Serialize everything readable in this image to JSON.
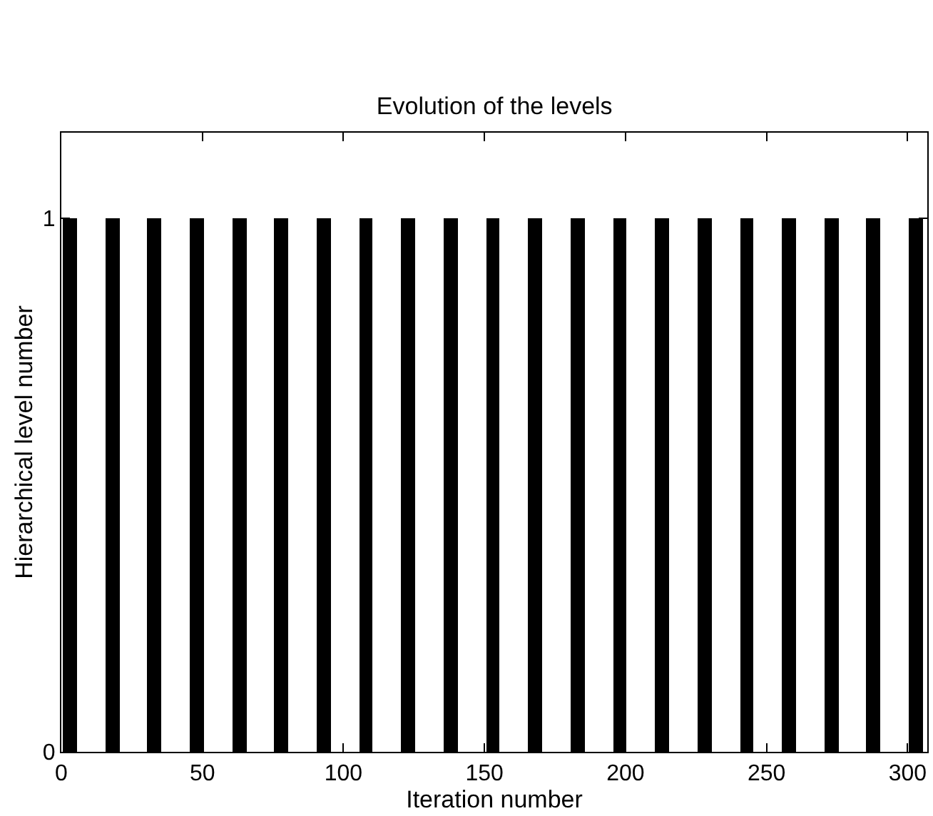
{
  "chart_data": {
    "type": "bar",
    "title": "Evolution of the levels",
    "xlabel": "Iteration number",
    "ylabel": "Hierarchical level number",
    "x": [
      3,
      18,
      33,
      48,
      63,
      78,
      93,
      108,
      123,
      138,
      153,
      168,
      183,
      198,
      213,
      228,
      243,
      258,
      273,
      288,
      303
    ],
    "values": [
      1,
      1,
      1,
      1,
      1,
      1,
      1,
      1,
      1,
      1,
      1,
      1,
      1,
      1,
      1,
      1,
      1,
      1,
      1,
      1,
      1
    ],
    "color": "#000000",
    "xlim": [
      0,
      307
    ],
    "xticks": [
      0,
      50,
      100,
      150,
      200,
      250,
      300
    ],
    "ylim": [
      0,
      1.16
    ],
    "yticks": [
      0,
      1
    ]
  }
}
